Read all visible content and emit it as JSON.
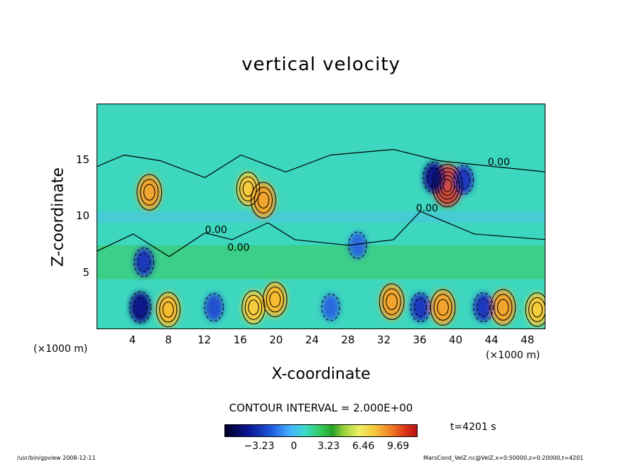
{
  "chart_data": {
    "type": "heatmap",
    "title": "vertical velocity",
    "xlabel": "X-coordinate",
    "ylabel": "Z-coordinate",
    "x_unit_left": "(×1000 m)",
    "x_unit_right": "(×1000 m)",
    "xlim": [
      0,
      50
    ],
    "ylim": [
      0,
      20
    ],
    "x_ticks": [
      4,
      8,
      12,
      16,
      20,
      24,
      28,
      32,
      36,
      40,
      44,
      48
    ],
    "y_ticks": [
      5,
      10,
      15
    ],
    "contour_interval": "CONTOUR INTERVAL = 2.000E+00",
    "contour_labels": [
      {
        "x": 12.0,
        "y": 8.6,
        "text": "0.00"
      },
      {
        "x": 14.5,
        "y": 7.0,
        "text": "0.00"
      },
      {
        "x": 35.5,
        "y": 10.5,
        "text": "0.00"
      },
      {
        "x": 43.5,
        "y": 14.6,
        "text": "0.00"
      }
    ],
    "colorbar_ticks": [
      "−3.23",
      "0",
      "3.23",
      "6.46",
      "9.69"
    ],
    "colorbar_tick_values": [
      -3.23,
      0,
      3.23,
      6.46,
      9.69
    ],
    "colorbar_range": [
      -6.46,
      11.5
    ],
    "time_label": "t=4201 s",
    "features": [
      {
        "x": 5.8,
        "y": 12.2,
        "value": 7.0
      },
      {
        "x": 5.2,
        "y": 6.0,
        "value": -4.0
      },
      {
        "x": 16.8,
        "y": 12.5,
        "value": 6.0
      },
      {
        "x": 18.5,
        "y": 11.5,
        "value": 7.0
      },
      {
        "x": 39.0,
        "y": 12.8,
        "value": 10.0
      },
      {
        "x": 37.5,
        "y": 13.5,
        "value": -5.0
      },
      {
        "x": 40.8,
        "y": 13.3,
        "value": -4.0
      },
      {
        "x": 29.0,
        "y": 7.5,
        "value": -3.0
      },
      {
        "x": 7.9,
        "y": 1.8,
        "value": 6.5
      },
      {
        "x": 17.4,
        "y": 2.0,
        "value": 6.0
      },
      {
        "x": 19.8,
        "y": 2.7,
        "value": 6.5
      },
      {
        "x": 32.8,
        "y": 2.5,
        "value": 7.0
      },
      {
        "x": 38.5,
        "y": 2.0,
        "value": 7.0
      },
      {
        "x": 45.2,
        "y": 2.0,
        "value": 7.0
      },
      {
        "x": 49.0,
        "y": 1.8,
        "value": 6.0
      },
      {
        "x": 4.8,
        "y": 2.0,
        "value": -5.0
      },
      {
        "x": 13.0,
        "y": 2.0,
        "value": -3.5
      },
      {
        "x": 26.0,
        "y": 2.0,
        "value": -3.0
      },
      {
        "x": 36.0,
        "y": 2.0,
        "value": -4.0
      },
      {
        "x": 43.0,
        "y": 2.0,
        "value": -4.0
      }
    ]
  },
  "footer": {
    "program": "/usr/bin/gpview  2008-12-11",
    "source": "MarsCond_VelZ.nc@VelZ,x=0:50000,z=0:20000,t=4201"
  }
}
